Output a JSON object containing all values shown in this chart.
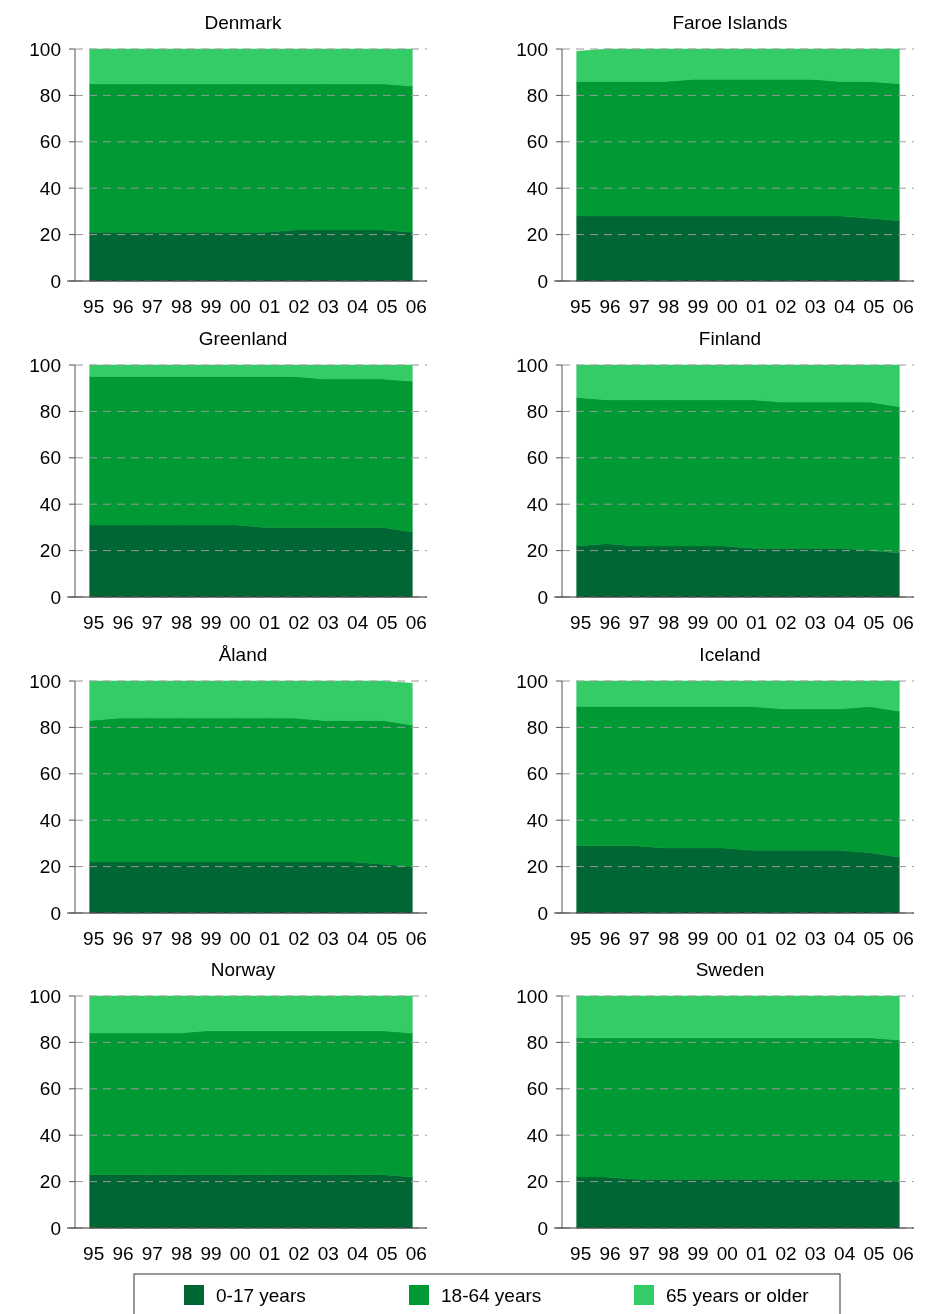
{
  "chart_data": [
    {
      "type": "area",
      "stacked": true,
      "title": "Denmark",
      "categories": [
        "95",
        "96",
        "97",
        "98",
        "99",
        "00",
        "01",
        "02",
        "03",
        "04",
        "05",
        "06"
      ],
      "ylim": [
        0,
        100
      ],
      "yticks": [
        0,
        20,
        40,
        60,
        80,
        100
      ],
      "grid": "y",
      "legend": "bottom",
      "series": [
        {
          "name": "0-17 years",
          "color": "#006633",
          "values": [
            21,
            21,
            21,
            21,
            21,
            21,
            21,
            22,
            22,
            22,
            22,
            21
          ]
        },
        {
          "name": "18-64 years",
          "color": "#009933",
          "values": [
            64,
            64,
            64,
            64,
            64,
            64,
            64,
            63,
            63,
            63,
            63,
            63
          ]
        },
        {
          "name": "65 years or older",
          "color": "#33cc66",
          "values": [
            15,
            15,
            15,
            15,
            15,
            15,
            15,
            15,
            15,
            15,
            15,
            16
          ]
        }
      ]
    },
    {
      "type": "area",
      "stacked": true,
      "title": "Faroe Islands",
      "categories": [
        "95",
        "96",
        "97",
        "98",
        "99",
        "00",
        "01",
        "02",
        "03",
        "04",
        "05",
        "06"
      ],
      "ylim": [
        0,
        100
      ],
      "yticks": [
        0,
        20,
        40,
        60,
        80,
        100
      ],
      "grid": "y",
      "series": [
        {
          "color": "#006633",
          "values": [
            28,
            28,
            28,
            28,
            28,
            28,
            28,
            28,
            28,
            28,
            27,
            26
          ]
        },
        {
          "color": "#009933",
          "values": [
            58,
            58,
            58,
            58,
            59,
            59,
            59,
            59,
            59,
            58,
            59,
            59
          ]
        },
        {
          "color": "#33cc66",
          "values": [
            13,
            14,
            14,
            14,
            13,
            13,
            13,
            13,
            13,
            14,
            14,
            15
          ]
        }
      ]
    },
    {
      "type": "area",
      "stacked": true,
      "title": "Greenland",
      "categories": [
        "95",
        "96",
        "97",
        "98",
        "99",
        "00",
        "01",
        "02",
        "03",
        "04",
        "05",
        "06"
      ],
      "ylim": [
        0,
        100
      ],
      "yticks": [
        0,
        20,
        40,
        60,
        80,
        100
      ],
      "grid": "y",
      "series": [
        {
          "color": "#006633",
          "values": [
            31,
            31,
            31,
            31,
            31,
            31,
            30,
            30,
            30,
            30,
            30,
            28
          ]
        },
        {
          "color": "#009933",
          "values": [
            64,
            64,
            64,
            64,
            64,
            64,
            65,
            65,
            64,
            64,
            64,
            65
          ]
        },
        {
          "color": "#33cc66",
          "values": [
            5,
            5,
            5,
            5,
            5,
            5,
            5,
            5,
            6,
            6,
            6,
            7
          ]
        }
      ]
    },
    {
      "type": "area",
      "stacked": true,
      "title": "Finland",
      "categories": [
        "95",
        "96",
        "97",
        "98",
        "99",
        "00",
        "01",
        "02",
        "03",
        "04",
        "05",
        "06"
      ],
      "ylim": [
        0,
        100
      ],
      "yticks": [
        0,
        20,
        40,
        60,
        80,
        100
      ],
      "grid": "y",
      "series": [
        {
          "color": "#006633",
          "values": [
            22,
            23,
            22,
            22,
            22,
            22,
            21,
            21,
            21,
            21,
            20,
            19
          ]
        },
        {
          "color": "#009933",
          "values": [
            64,
            62,
            63,
            63,
            63,
            63,
            64,
            63,
            63,
            63,
            64,
            63
          ]
        },
        {
          "color": "#33cc66",
          "values": [
            14,
            15,
            15,
            15,
            15,
            15,
            15,
            16,
            16,
            16,
            16,
            18
          ]
        }
      ]
    },
    {
      "type": "area",
      "stacked": true,
      "title": "Åland",
      "categories": [
        "95",
        "96",
        "97",
        "98",
        "99",
        "00",
        "01",
        "02",
        "03",
        "04",
        "05",
        "06"
      ],
      "ylim": [
        0,
        100
      ],
      "yticks": [
        0,
        20,
        40,
        60,
        80,
        100
      ],
      "grid": "y",
      "series": [
        {
          "color": "#006633",
          "values": [
            22,
            22,
            22,
            22,
            22,
            22,
            22,
            22,
            22,
            22,
            21,
            20
          ]
        },
        {
          "color": "#009933",
          "values": [
            61,
            62,
            62,
            62,
            62,
            62,
            62,
            62,
            61,
            61,
            62,
            61
          ]
        },
        {
          "color": "#33cc66",
          "values": [
            17,
            16,
            16,
            16,
            16,
            16,
            16,
            16,
            17,
            17,
            17,
            18
          ]
        }
      ]
    },
    {
      "type": "area",
      "stacked": true,
      "title": "Iceland",
      "categories": [
        "95",
        "96",
        "97",
        "98",
        "99",
        "00",
        "01",
        "02",
        "03",
        "04",
        "05",
        "06"
      ],
      "ylim": [
        0,
        100
      ],
      "yticks": [
        0,
        20,
        40,
        60,
        80,
        100
      ],
      "grid": "y",
      "series": [
        {
          "color": "#006633",
          "values": [
            29,
            29,
            29,
            28,
            28,
            28,
            27,
            27,
            27,
            27,
            26,
            24
          ]
        },
        {
          "color": "#009933",
          "values": [
            60,
            60,
            60,
            61,
            61,
            61,
            62,
            61,
            61,
            61,
            63,
            63
          ]
        },
        {
          "color": "#33cc66",
          "values": [
            11,
            11,
            11,
            11,
            11,
            11,
            11,
            12,
            12,
            12,
            11,
            13
          ]
        }
      ]
    },
    {
      "type": "area",
      "stacked": true,
      "title": "Norway",
      "categories": [
        "95",
        "96",
        "97",
        "98",
        "99",
        "00",
        "01",
        "02",
        "03",
        "04",
        "05",
        "06"
      ],
      "ylim": [
        0,
        100
      ],
      "yticks": [
        0,
        20,
        40,
        60,
        80,
        100
      ],
      "grid": "y",
      "series": [
        {
          "color": "#006633",
          "values": [
            23,
            23,
            23,
            23,
            23,
            23,
            23,
            23,
            23,
            23,
            23,
            22
          ]
        },
        {
          "color": "#009933",
          "values": [
            61,
            61,
            61,
            61,
            62,
            62,
            62,
            62,
            62,
            62,
            62,
            62
          ]
        },
        {
          "color": "#33cc66",
          "values": [
            16,
            16,
            16,
            16,
            15,
            15,
            15,
            15,
            15,
            15,
            15,
            16
          ]
        }
      ]
    },
    {
      "type": "area",
      "stacked": true,
      "title": "Sweden",
      "categories": [
        "95",
        "96",
        "97",
        "98",
        "99",
        "00",
        "01",
        "02",
        "03",
        "04",
        "05",
        "06"
      ],
      "ylim": [
        0,
        100
      ],
      "yticks": [
        0,
        20,
        40,
        60,
        80,
        100
      ],
      "grid": "y",
      "series": [
        {
          "color": "#006633",
          "values": [
            22,
            22,
            21,
            21,
            21,
            21,
            21,
            21,
            21,
            21,
            21,
            20
          ]
        },
        {
          "color": "#009933",
          "values": [
            60,
            60,
            61,
            61,
            61,
            61,
            61,
            61,
            61,
            61,
            61,
            61
          ]
        },
        {
          "color": "#33cc66",
          "values": [
            18,
            18,
            18,
            18,
            18,
            18,
            18,
            18,
            18,
            18,
            18,
            19
          ]
        }
      ]
    }
  ]
}
